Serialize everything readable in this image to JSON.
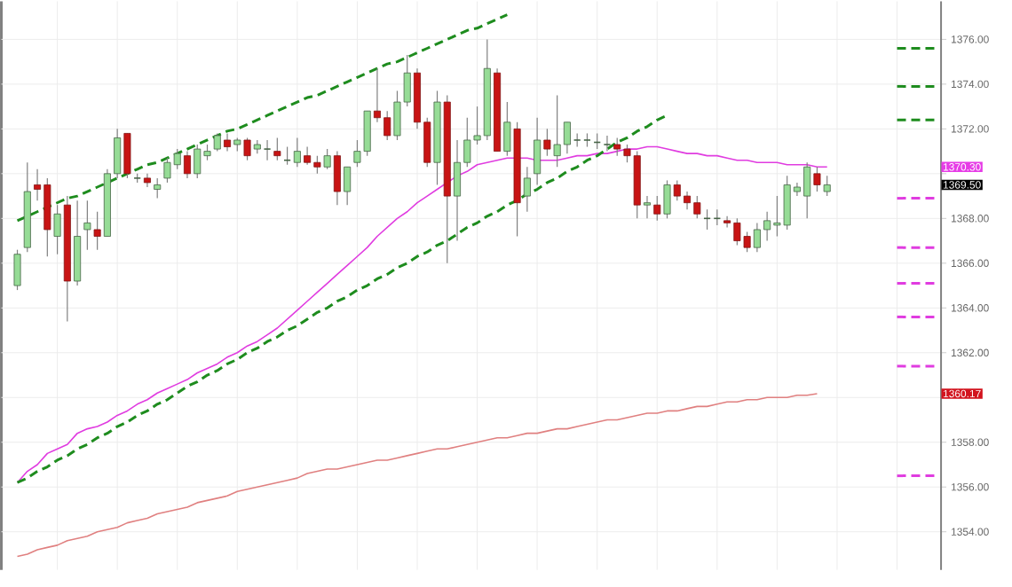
{
  "chart_data": {
    "type": "candlestick",
    "categories": [
      null,
      null,
      null,
      null,
      null,
      null,
      null,
      null,
      null,
      null,
      null,
      null,
      null,
      null,
      null,
      null,
      null,
      null,
      null,
      null,
      null,
      null,
      null,
      null,
      null,
      null,
      null,
      null,
      null,
      null,
      null,
      null,
      null,
      null,
      null,
      null,
      null,
      null,
      null,
      null,
      null,
      null,
      null,
      null,
      null,
      null,
      null,
      null,
      null,
      null,
      null,
      null,
      null,
      null,
      null,
      null,
      null,
      null,
      null,
      null,
      null,
      null,
      null,
      null,
      null,
      null,
      null,
      null,
      null,
      null,
      null,
      null,
      null,
      null,
      null,
      null,
      null,
      null,
      null,
      null,
      null,
      null,
      null,
      null,
      null,
      null,
      null,
      null,
      null,
      null,
      null,
      null,
      null
    ],
    "ohlc": [
      [
        1365.0,
        1366.6,
        1364.8,
        1366.4
      ],
      [
        1366.7,
        1370.5,
        1366.5,
        1369.2
      ],
      [
        1369.5,
        1370.2,
        1368.8,
        1369.3
      ],
      [
        1369.5,
        1369.8,
        1366.3,
        1367.5
      ],
      [
        1367.2,
        1368.6,
        1366.4,
        1368.2
      ],
      [
        1368.6,
        1369.0,
        1363.4,
        1365.2
      ],
      [
        1365.2,
        1368.8,
        1365.0,
        1367.2
      ],
      [
        1367.5,
        1368.8,
        1366.6,
        1367.8
      ],
      [
        1367.5,
        1368.3,
        1366.6,
        1367.2
      ],
      [
        1367.2,
        1370.2,
        1367.2,
        1370.0
      ],
      [
        1370.0,
        1372.0,
        1369.8,
        1371.6
      ],
      [
        1371.8,
        1371.8,
        1369.8,
        1370.0
      ],
      [
        1369.8,
        1370.0,
        1369.6,
        1369.8
      ],
      [
        1369.8,
        1370.0,
        1369.4,
        1369.6
      ],
      [
        1369.3,
        1369.8,
        1368.9,
        1369.5
      ],
      [
        1369.8,
        1370.7,
        1369.6,
        1370.5
      ],
      [
        1370.4,
        1371.1,
        1370.2,
        1370.9
      ],
      [
        1370.8,
        1371.0,
        1369.8,
        1370.0
      ],
      [
        1370.0,
        1371.3,
        1369.8,
        1371.1
      ],
      [
        1370.8,
        1371.3,
        1370.6,
        1371.0
      ],
      [
        1371.1,
        1371.8,
        1371.0,
        1371.7
      ],
      [
        1371.5,
        1371.8,
        1371.0,
        1371.2
      ],
      [
        1371.3,
        1371.6,
        1371.0,
        1371.5
      ],
      [
        1371.5,
        1371.6,
        1370.6,
        1370.8
      ],
      [
        1371.1,
        1371.5,
        1370.9,
        1371.3
      ],
      [
        1371.1,
        1371.5,
        1370.6,
        1371.1
      ],
      [
        1371.0,
        1371.6,
        1370.6,
        1370.8
      ],
      [
        1370.6,
        1371.2,
        1370.4,
        1370.6
      ],
      [
        1370.5,
        1371.6,
        1370.3,
        1371.0
      ],
      [
        1370.8,
        1371.2,
        1370.4,
        1370.5
      ],
      [
        1370.5,
        1370.8,
        1370.0,
        1370.3
      ],
      [
        1370.3,
        1371.1,
        1370.2,
        1370.8
      ],
      [
        1370.8,
        1371.0,
        1368.6,
        1369.2
      ],
      [
        1369.2,
        1370.3,
        1368.6,
        1370.3
      ],
      [
        1370.5,
        1371.5,
        1370.3,
        1371.0
      ],
      [
        1371.0,
        1372.8,
        1370.8,
        1372.8
      ],
      [
        1372.8,
        1374.7,
        1372.3,
        1372.5
      ],
      [
        1372.5,
        1372.8,
        1371.5,
        1371.7
      ],
      [
        1371.7,
        1373.7,
        1371.5,
        1373.2
      ],
      [
        1373.2,
        1375.3,
        1373.0,
        1374.5
      ],
      [
        1374.5,
        1374.7,
        1372.0,
        1372.3
      ],
      [
        1372.3,
        1372.5,
        1370.3,
        1370.5
      ],
      [
        1370.5,
        1373.7,
        1369.5,
        1373.2
      ],
      [
        1373.2,
        1373.5,
        1366.0,
        1369.0
      ],
      [
        1369.0,
        1371.5,
        1367.0,
        1370.5
      ],
      [
        1370.5,
        1372.5,
        1370.3,
        1371.5
      ],
      [
        1371.5,
        1373.0,
        1371.3,
        1371.7
      ],
      [
        1371.7,
        1376.0,
        1371.5,
        1374.7
      ],
      [
        1374.5,
        1374.7,
        1371.0,
        1371.0
      ],
      [
        1371.0,
        1373.2,
        1370.8,
        1372.3
      ],
      [
        1372.0,
        1372.3,
        1367.2,
        1368.7
      ],
      [
        1369.0,
        1370.3,
        1368.3,
        1369.8
      ],
      [
        1370.0,
        1372.5,
        1369.5,
        1371.5
      ],
      [
        1371.5,
        1372.0,
        1370.8,
        1371.1
      ],
      [
        1370.8,
        1373.5,
        1370.3,
        1371.3
      ],
      [
        1371.3,
        1372.3,
        1370.9,
        1372.3
      ],
      [
        1371.5,
        1371.8,
        1371.2,
        1371.5
      ],
      [
        1371.5,
        1371.8,
        1371.2,
        1371.5
      ],
      [
        1371.4,
        1371.8,
        1371.1,
        1371.4
      ],
      [
        1371.3,
        1371.7,
        1371.0,
        1371.3
      ],
      [
        1371.3,
        1371.6,
        1370.8,
        1371.1
      ],
      [
        1371.1,
        1371.3,
        1370.5,
        1370.8
      ],
      [
        1370.8,
        1371.0,
        1368.0,
        1368.6
      ],
      [
        1368.6,
        1369.0,
        1368.0,
        1368.7
      ],
      [
        1368.6,
        1369.0,
        1367.9,
        1368.2
      ],
      [
        1368.2,
        1369.7,
        1368.0,
        1369.5
      ],
      [
        1369.5,
        1369.7,
        1368.8,
        1369.0
      ],
      [
        1369.0,
        1369.2,
        1368.4,
        1368.7
      ],
      [
        1368.7,
        1369.0,
        1368.0,
        1368.2
      ],
      [
        1368.0,
        1368.4,
        1367.5,
        1368.0
      ],
      [
        1368.0,
        1368.4,
        1367.7,
        1368.0
      ],
      [
        1367.9,
        1368.1,
        1367.6,
        1367.8
      ],
      [
        1367.8,
        1368.0,
        1366.8,
        1367.0
      ],
      [
        1367.2,
        1367.4,
        1366.5,
        1366.7
      ],
      [
        1366.7,
        1367.8,
        1366.5,
        1367.5
      ],
      [
        1367.5,
        1368.3,
        1367.0,
        1367.9
      ],
      [
        1367.7,
        1369.0,
        1367.2,
        1367.8
      ],
      [
        1367.7,
        1369.9,
        1367.5,
        1369.5
      ],
      [
        1369.2,
        1369.6,
        1369.0,
        1369.4
      ],
      [
        1369.0,
        1370.5,
        1368.0,
        1370.3
      ],
      [
        1370.0,
        1370.3,
        1369.2,
        1369.5
      ],
      [
        1369.2,
        1369.9,
        1369.0,
        1369.5
      ],
      null,
      null,
      null,
      null,
      null,
      null,
      null,
      null,
      null,
      null,
      null
    ],
    "series": [
      {
        "type": "line",
        "color": "#e03ce0",
        "line_style": "solid",
        "values": [
          1356.2,
          1356.7,
          1357.0,
          1357.5,
          1357.7,
          1357.9,
          1358.4,
          1358.6,
          1358.7,
          1358.9,
          1359.2,
          1359.4,
          1359.7,
          1359.9,
          1360.2,
          1360.4,
          1360.6,
          1360.8,
          1361.1,
          1361.3,
          1361.5,
          1361.8,
          1362.0,
          1362.3,
          1362.5,
          1362.8,
          1363.1,
          1363.5,
          1363.9,
          1364.3,
          1364.7,
          1365.1,
          1365.5,
          1365.9,
          1366.3,
          1366.7,
          1367.2,
          1367.6,
          1368.0,
          1368.3,
          1368.7,
          1369.0,
          1369.3,
          1369.6,
          1369.9,
          1370.1,
          1370.4,
          1370.5,
          1370.6,
          1370.7,
          1370.7,
          1370.7,
          1370.6,
          1370.6,
          1370.6,
          1370.7,
          1370.8,
          1370.8,
          1370.9,
          1370.9,
          1371.0,
          1371.1,
          1371.1,
          1371.2,
          1371.2,
          1371.1,
          1371.0,
          1370.9,
          1370.9,
          1370.8,
          1370.8,
          1370.7,
          1370.6,
          1370.6,
          1370.5,
          1370.5,
          1370.5,
          1370.4,
          1370.4,
          1370.4,
          1370.3,
          1370.3,
          null,
          null,
          null,
          null,
          null,
          null,
          null,
          null,
          null,
          null,
          null
        ]
      },
      {
        "type": "line",
        "color": "#e08080",
        "line_style": "solid",
        "values": [
          1352.9,
          1353.0,
          1353.2,
          1353.3,
          1353.4,
          1353.6,
          1353.7,
          1353.8,
          1354.0,
          1354.1,
          1354.2,
          1354.4,
          1354.5,
          1354.6,
          1354.8,
          1354.9,
          1355.0,
          1355.1,
          1355.3,
          1355.4,
          1355.5,
          1355.6,
          1355.8,
          1355.9,
          1356.0,
          1356.1,
          1356.2,
          1356.3,
          1356.4,
          1356.6,
          1356.7,
          1356.8,
          1356.8,
          1356.9,
          1357.0,
          1357.1,
          1357.2,
          1357.2,
          1357.3,
          1357.4,
          1357.5,
          1357.6,
          1357.7,
          1357.7,
          1357.8,
          1357.9,
          1358.0,
          1358.1,
          1358.2,
          1358.2,
          1358.3,
          1358.4,
          1358.4,
          1358.5,
          1358.6,
          1358.6,
          1358.7,
          1358.8,
          1358.9,
          1359.0,
          1359.0,
          1359.1,
          1359.2,
          1359.3,
          1359.3,
          1359.4,
          1359.4,
          1359.5,
          1359.6,
          1359.6,
          1359.7,
          1359.8,
          1359.8,
          1359.9,
          1359.9,
          1360.0,
          1360.0,
          1360.0,
          1360.1,
          1360.1,
          1360.17,
          null,
          null,
          null,
          null,
          null,
          null,
          null,
          null,
          null,
          null,
          null,
          null
        ]
      },
      {
        "type": "line",
        "color": "#1e8c1e",
        "line_style": "dashed",
        "values": [
          1367.9,
          1368.1,
          1368.3,
          1368.5,
          1368.7,
          1368.9,
          1369.0,
          1369.2,
          1369.4,
          1369.6,
          1369.8,
          1370.0,
          1370.2,
          1370.4,
          1370.5,
          1370.7,
          1370.9,
          1371.1,
          1371.3,
          1371.5,
          1371.7,
          1371.9,
          1372.0,
          1372.2,
          1372.4,
          1372.6,
          1372.8,
          1373.0,
          1373.2,
          1373.4,
          1373.5,
          1373.7,
          1373.9,
          1374.1,
          1374.3,
          1374.5,
          1374.7,
          1374.9,
          1375.0,
          1375.2,
          1375.4,
          1375.6,
          1375.8,
          1376.0,
          1376.2,
          1376.4,
          1376.5,
          1376.7,
          1376.9,
          1377.1,
          null,
          null,
          null,
          null,
          null,
          null,
          null,
          null,
          null,
          null,
          null,
          null,
          null,
          null,
          null,
          null,
          null,
          null,
          null,
          null,
          null,
          null,
          null,
          null,
          null,
          null,
          null,
          null,
          null,
          null,
          null,
          null,
          null,
          null,
          null,
          null,
          null,
          null,
          null,
          null,
          null,
          null,
          null
        ]
      },
      {
        "type": "line",
        "color": "#1e8c1e",
        "line_style": "dashed",
        "values": [
          1356.2,
          1356.4,
          1356.7,
          1356.9,
          1357.2,
          1357.4,
          1357.7,
          1357.9,
          1358.2,
          1358.4,
          1358.7,
          1358.9,
          1359.2,
          1359.4,
          1359.7,
          1359.9,
          1360.2,
          1360.5,
          1360.7,
          1361.0,
          1361.2,
          1361.5,
          1361.7,
          1362.0,
          1362.2,
          1362.5,
          1362.7,
          1363.0,
          1363.2,
          1363.5,
          1363.8,
          1364.0,
          1364.3,
          1364.5,
          1364.8,
          1365.0,
          1365.3,
          1365.5,
          1365.8,
          1366.0,
          1366.3,
          1366.5,
          1366.8,
          1367.0,
          1367.3,
          1367.6,
          1367.8,
          1368.1,
          1368.3,
          1368.6,
          1368.8,
          1369.1,
          1369.3,
          1369.6,
          1369.8,
          1370.1,
          1370.3,
          1370.6,
          1370.8,
          1371.1,
          1371.4,
          1371.6,
          1371.9,
          1372.1,
          1372.4,
          1372.6,
          null,
          null,
          null,
          null,
          null,
          null,
          null,
          null,
          null,
          null,
          null,
          null,
          null,
          null,
          null,
          null,
          null,
          null,
          null,
          null,
          null,
          null,
          null,
          null,
          null,
          null,
          null
        ]
      },
      {
        "type": "line",
        "color": "#1e8c1e",
        "line_style": "dashed",
        "values": [
          null,
          null,
          null,
          null,
          null,
          null,
          null,
          null,
          null,
          null,
          null,
          null,
          null,
          null,
          null,
          null,
          null,
          null,
          null,
          null,
          null,
          null,
          null,
          null,
          null,
          null,
          null,
          null,
          null,
          null,
          null,
          null,
          null,
          null,
          null,
          null,
          null,
          null,
          null,
          null,
          null,
          null,
          null,
          null,
          null,
          null,
          null,
          null,
          null,
          null,
          null,
          null,
          null,
          null,
          null,
          null,
          null,
          null,
          null,
          null,
          null,
          null,
          null,
          null,
          null,
          null,
          null,
          null,
          null,
          null,
          null,
          null,
          null,
          null,
          null,
          null,
          null,
          null,
          null,
          null,
          null,
          null,
          null,
          null,
          null,
          null,
          null,
          null,
          1375.6,
          1375.6,
          1375.6,
          1375.6,
          1375.6
        ]
      },
      {
        "type": "line",
        "color": "#1e8c1e",
        "line_style": "dashed",
        "values": [
          null,
          null,
          null,
          null,
          null,
          null,
          null,
          null,
          null,
          null,
          null,
          null,
          null,
          null,
          null,
          null,
          null,
          null,
          null,
          null,
          null,
          null,
          null,
          null,
          null,
          null,
          null,
          null,
          null,
          null,
          null,
          null,
          null,
          null,
          null,
          null,
          null,
          null,
          null,
          null,
          null,
          null,
          null,
          null,
          null,
          null,
          null,
          null,
          null,
          null,
          null,
          null,
          null,
          null,
          null,
          null,
          null,
          null,
          null,
          null,
          null,
          null,
          null,
          null,
          null,
          null,
          null,
          null,
          null,
          null,
          null,
          null,
          null,
          null,
          null,
          null,
          null,
          null,
          null,
          null,
          null,
          null,
          null,
          null,
          null,
          null,
          null,
          null,
          1373.9,
          1373.9,
          1373.9,
          1373.9,
          1373.9
        ]
      },
      {
        "type": "line",
        "color": "#1e8c1e",
        "line_style": "dashed",
        "values": [
          null,
          null,
          null,
          null,
          null,
          null,
          null,
          null,
          null,
          null,
          null,
          null,
          null,
          null,
          null,
          null,
          null,
          null,
          null,
          null,
          null,
          null,
          null,
          null,
          null,
          null,
          null,
          null,
          null,
          null,
          null,
          null,
          null,
          null,
          null,
          null,
          null,
          null,
          null,
          null,
          null,
          null,
          null,
          null,
          null,
          null,
          null,
          null,
          null,
          null,
          null,
          null,
          null,
          null,
          null,
          null,
          null,
          null,
          null,
          null,
          null,
          null,
          null,
          null,
          null,
          null,
          null,
          null,
          null,
          null,
          null,
          null,
          null,
          null,
          null,
          null,
          null,
          null,
          null,
          null,
          null,
          null,
          null,
          null,
          null,
          null,
          null,
          null,
          1372.4,
          1372.4,
          1372.4,
          1372.4,
          1372.4
        ]
      },
      {
        "type": "line",
        "color": "#e03ce0",
        "line_style": "dashed",
        "values": [
          null,
          null,
          null,
          null,
          null,
          null,
          null,
          null,
          null,
          null,
          null,
          null,
          null,
          null,
          null,
          null,
          null,
          null,
          null,
          null,
          null,
          null,
          null,
          null,
          null,
          null,
          null,
          null,
          null,
          null,
          null,
          null,
          null,
          null,
          null,
          null,
          null,
          null,
          null,
          null,
          null,
          null,
          null,
          null,
          null,
          null,
          null,
          null,
          null,
          null,
          null,
          null,
          null,
          null,
          null,
          null,
          null,
          null,
          null,
          null,
          null,
          null,
          null,
          null,
          null,
          null,
          null,
          null,
          null,
          null,
          null,
          null,
          null,
          null,
          null,
          null,
          null,
          null,
          null,
          null,
          null,
          null,
          null,
          null,
          null,
          null,
          null,
          null,
          1368.9,
          1368.9,
          1368.9,
          1368.9,
          1368.9
        ]
      },
      {
        "type": "line",
        "color": "#e03ce0",
        "line_style": "dashed",
        "values": [
          null,
          null,
          null,
          null,
          null,
          null,
          null,
          null,
          null,
          null,
          null,
          null,
          null,
          null,
          null,
          null,
          null,
          null,
          null,
          null,
          null,
          null,
          null,
          null,
          null,
          null,
          null,
          null,
          null,
          null,
          null,
          null,
          null,
          null,
          null,
          null,
          null,
          null,
          null,
          null,
          null,
          null,
          null,
          null,
          null,
          null,
          null,
          null,
          null,
          null,
          null,
          null,
          null,
          null,
          null,
          null,
          null,
          null,
          null,
          null,
          null,
          null,
          null,
          null,
          null,
          null,
          null,
          null,
          null,
          null,
          null,
          null,
          null,
          null,
          null,
          null,
          null,
          null,
          null,
          null,
          null,
          null,
          null,
          null,
          null,
          null,
          null,
          null,
          1366.7,
          1366.7,
          1366.7,
          1366.7,
          1366.7
        ]
      },
      {
        "type": "line",
        "color": "#e03ce0",
        "line_style": "dashed",
        "values": [
          null,
          null,
          null,
          null,
          null,
          null,
          null,
          null,
          null,
          null,
          null,
          null,
          null,
          null,
          null,
          null,
          null,
          null,
          null,
          null,
          null,
          null,
          null,
          null,
          null,
          null,
          null,
          null,
          null,
          null,
          null,
          null,
          null,
          null,
          null,
          null,
          null,
          null,
          null,
          null,
          null,
          null,
          null,
          null,
          null,
          null,
          null,
          null,
          null,
          null,
          null,
          null,
          null,
          null,
          null,
          null,
          null,
          null,
          null,
          null,
          null,
          null,
          null,
          null,
          null,
          null,
          null,
          null,
          null,
          null,
          null,
          null,
          null,
          null,
          null,
          null,
          null,
          null,
          null,
          null,
          null,
          null,
          null,
          null,
          null,
          null,
          null,
          null,
          1365.1,
          1365.1,
          1365.1,
          1365.1,
          1365.1
        ]
      },
      {
        "type": "line",
        "color": "#e03ce0",
        "line_style": "dashed",
        "values": [
          null,
          null,
          null,
          null,
          null,
          null,
          null,
          null,
          null,
          null,
          null,
          null,
          null,
          null,
          null,
          null,
          null,
          null,
          null,
          null,
          null,
          null,
          null,
          null,
          null,
          null,
          null,
          null,
          null,
          null,
          null,
          null,
          null,
          null,
          null,
          null,
          null,
          null,
          null,
          null,
          null,
          null,
          null,
          null,
          null,
          null,
          null,
          null,
          null,
          null,
          null,
          null,
          null,
          null,
          null,
          null,
          null,
          null,
          null,
          null,
          null,
          null,
          null,
          null,
          null,
          null,
          null,
          null,
          null,
          null,
          null,
          null,
          null,
          null,
          null,
          null,
          null,
          null,
          null,
          null,
          null,
          null,
          null,
          null,
          null,
          null,
          null,
          null,
          1363.6,
          1363.6,
          1363.6,
          1363.6,
          1363.6
        ]
      },
      {
        "type": "line",
        "color": "#e03ce0",
        "line_style": "dashed",
        "values": [
          null,
          null,
          null,
          null,
          null,
          null,
          null,
          null,
          null,
          null,
          null,
          null,
          null,
          null,
          null,
          null,
          null,
          null,
          null,
          null,
          null,
          null,
          null,
          null,
          null,
          null,
          null,
          null,
          null,
          null,
          null,
          null,
          null,
          null,
          null,
          null,
          null,
          null,
          null,
          null,
          null,
          null,
          null,
          null,
          null,
          null,
          null,
          null,
          null,
          null,
          null,
          null,
          null,
          null,
          null,
          null,
          null,
          null,
          null,
          null,
          null,
          null,
          null,
          null,
          null,
          null,
          null,
          null,
          null,
          null,
          null,
          null,
          null,
          null,
          null,
          null,
          null,
          null,
          null,
          null,
          null,
          null,
          null,
          null,
          null,
          null,
          null,
          null,
          1361.4,
          1361.4,
          1361.4,
          1361.4,
          1361.4
        ]
      },
      {
        "type": "line",
        "color": "#e03ce0",
        "line_style": "dashed",
        "values": [
          null,
          null,
          null,
          null,
          null,
          null,
          null,
          null,
          null,
          null,
          null,
          null,
          null,
          null,
          null,
          null,
          null,
          null,
          null,
          null,
          null,
          null,
          null,
          null,
          null,
          null,
          null,
          null,
          null,
          null,
          null,
          null,
          null,
          null,
          null,
          null,
          null,
          null,
          null,
          null,
          null,
          null,
          null,
          null,
          null,
          null,
          null,
          null,
          null,
          null,
          null,
          null,
          null,
          null,
          null,
          null,
          null,
          null,
          null,
          null,
          null,
          null,
          null,
          null,
          null,
          null,
          null,
          null,
          null,
          null,
          null,
          null,
          null,
          null,
          null,
          null,
          null,
          null,
          null,
          null,
          null,
          null,
          null,
          null,
          null,
          null,
          null,
          null,
          1356.5,
          1356.5,
          1356.5,
          1356.5,
          1356.5
        ]
      }
    ],
    "ylim": [
      1352.3,
      1377.7
    ],
    "yticks": [
      {
        "value": 1354,
        "label": "1354.00"
      },
      {
        "value": 1356,
        "label": "1356.00"
      },
      {
        "value": 1358,
        "label": "1358.00"
      },
      {
        "value": 1360,
        "label": null
      },
      {
        "value": 1362,
        "label": "1362.00"
      },
      {
        "value": 1364,
        "label": "1364.00"
      },
      {
        "value": 1366,
        "label": "1366.00"
      },
      {
        "value": 1368,
        "label": "1368.00"
      },
      {
        "value": 1370,
        "label": null
      },
      {
        "value": 1372,
        "label": "1372.00"
      },
      {
        "value": 1374,
        "label": "1374.00"
      },
      {
        "value": 1376,
        "label": "1376.00"
      }
    ],
    "annotations": [
      "1370.30",
      "1369.50",
      "1360.17"
    ],
    "grid": true
  }
}
